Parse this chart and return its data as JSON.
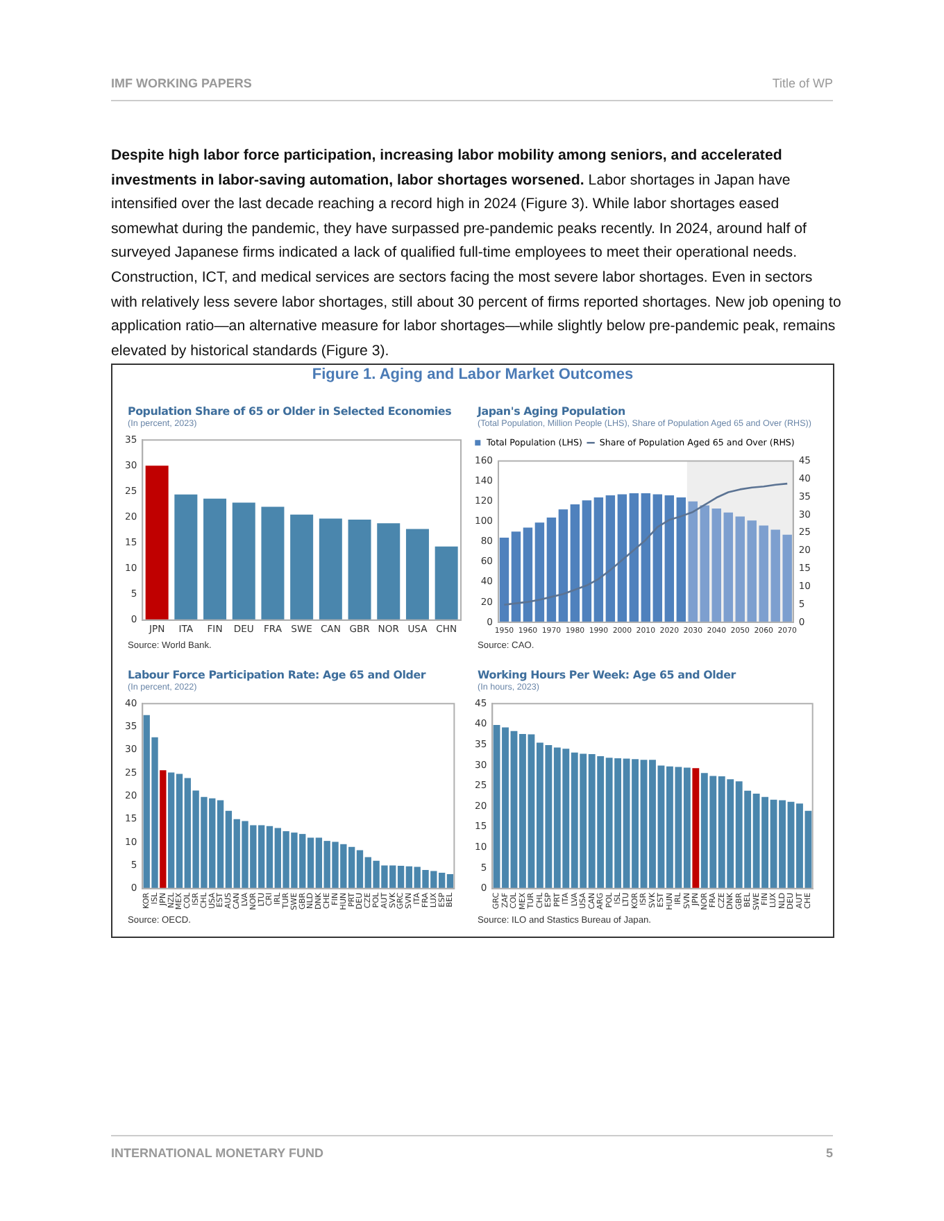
{
  "chart_data": [
    {
      "type": "bar",
      "title": "Population Share of 65 or Older in Selected Economies",
      "subtitle": "(In percent, 2023)",
      "categories": [
        "JPN",
        "ITA",
        "FIN",
        "DEU",
        "FRA",
        "SWE",
        "CAN",
        "GBR",
        "NOR",
        "USA",
        "CHN"
      ],
      "values": [
        30.0,
        24.4,
        23.6,
        22.8,
        22.0,
        20.5,
        19.7,
        19.5,
        18.8,
        17.7,
        14.3
      ],
      "colors": [
        "#c00000",
        "#4a86ad",
        "#4a86ad",
        "#4a86ad",
        "#4a86ad",
        "#4a86ad",
        "#4a86ad",
        "#4a86ad",
        "#4a86ad",
        "#4a86ad",
        "#4a86ad"
      ],
      "ylim": [
        0,
        35
      ],
      "yticks": [
        0,
        5,
        10,
        15,
        20,
        25,
        30,
        35
      ],
      "grid": false,
      "legend": false,
      "annotations": [
        "IMF WORKING PAPERS",
        "Title of WP",
        "Despite high labor force participation, increasing labor mobility among seniors, and accelerated investments in labor-saving automation, labor shortages worsened.",
        "Labor shortages in Japan have intensified over the last decade reaching a record high in 2024 (Figure 3). While labor shortages eased somewhat during the pandemic, they have surpassed pre-pandemic peaks recently. In 2024, around half of surveyed Japanese firms indicated a lack of qualified full-time employees to meet their operational needs. Construction, ICT, and medical services are sectors facing the most severe labor shortages. Even in sectors with relatively less severe labor shortages, still about 30 percent of firms reported shortages. New job opening to application ratio—an alternative measure for labor shortages—while slightly below pre-pandemic peak, remains elevated by historical standards (Figure 3).",
        "Figure 1. Aging and Labor Market Outcomes",
        "Source: World Bank.",
        "INTERNATIONAL MONETARY FUND",
        "5"
      ]
    },
    {
      "type": "bar",
      "title": "Japan's Aging Population",
      "subtitle": "(Total Population, Million People (LHS), Share of Population Aged 65 and Over (RHS))",
      "categories": [
        "1950",
        null,
        "1960",
        null,
        "1970",
        null,
        "1980",
        null,
        "1990",
        null,
        "2000",
        null,
        "2010",
        null,
        "2020",
        null,
        "2030",
        null,
        "2040",
        null,
        "2050",
        null,
        "2060",
        null,
        "2070"
      ],
      "series": [
        {
          "name": "Total Population (LHS)",
          "type": "bar",
          "color": "#4f81bd",
          "colors": [
            "#4f81bd",
            "#4f81bd",
            "#4f81bd",
            "#4f81bd",
            "#4f81bd",
            "#4f81bd",
            "#4f81bd",
            "#4f81bd",
            "#4f81bd",
            "#4f81bd",
            "#4f81bd",
            "#4f81bd",
            "#4f81bd",
            "#4f81bd",
            "#4f81bd",
            "#4f81bd",
            "#7d9fcf",
            "#7d9fcf",
            "#7d9fcf",
            "#7d9fcf",
            "#7d9fcf",
            "#7d9fcf",
            "#7d9fcf",
            "#7d9fcf",
            "#7d9fcf"
          ],
          "values": [
            84,
            90,
            94,
            99,
            104,
            112,
            117,
            121,
            124,
            126,
            127,
            128,
            128,
            127,
            126,
            124,
            120,
            116,
            113,
            109,
            105,
            101,
            96,
            92,
            87
          ]
        },
        {
          "name": "Share of Population Aged 65 and Over (RHS)",
          "type": "line",
          "axis": "y2",
          "color": "#5b7393",
          "values": [
            4.9,
            5.3,
            5.7,
            6.3,
            7.1,
            7.9,
            9.1,
            10.3,
            12.1,
            14.6,
            17.4,
            20.2,
            23.0,
            26.6,
            28.6,
            29.6,
            30.8,
            32.8,
            34.8,
            36.3,
            37.1,
            37.6,
            37.9,
            38.4,
            38.7
          ]
        }
      ],
      "ylim": [
        0,
        160
      ],
      "yticks": [
        0,
        20,
        40,
        60,
        80,
        100,
        120,
        140,
        160
      ],
      "y2lim": [
        0,
        45
      ],
      "y2ticks": [
        0,
        5,
        10,
        15,
        20,
        25,
        30,
        35,
        40,
        45
      ],
      "marker": "none",
      "grid": false,
      "legend": "top left",
      "bands": [
        {
          "axis": "x",
          "from": "2030",
          "to": "2070",
          "color": "#eeeeee"
        }
      ],
      "annotations": [
        "Source: CAO."
      ]
    },
    {
      "type": "bar",
      "title": "Labour Force Participation Rate: Age 65 and Older",
      "subtitle": "(In percent, 2022)",
      "categories": [
        "KOR",
        "ISL",
        "JPN",
        "NZL",
        "MEX",
        "COL",
        "ISR",
        "CHL",
        "USA",
        "EST",
        "AUS",
        "CAN",
        "LVA",
        "NOR",
        "LTU",
        "CRI",
        "IRL",
        "TUR",
        "SWE",
        "GBR",
        "NLD",
        "DNK",
        "CHE",
        "FIN",
        "HUN",
        "PRT",
        "DEU",
        "CZE",
        "POL",
        "AUT",
        "SVK",
        "GRC",
        "SVN",
        "ITA",
        "FRA",
        "LUX",
        "ESP",
        "BEL"
      ],
      "values": [
        37.5,
        32.7,
        25.6,
        25.1,
        24.8,
        23.9,
        21.2,
        19.8,
        19.5,
        19.1,
        16.8,
        15.0,
        14.6,
        13.7,
        13.7,
        13.5,
        13.1,
        12.4,
        12.1,
        11.8,
        11.0,
        11.0,
        10.3,
        10.1,
        9.6,
        9.0,
        8.3,
        6.8,
        6.0,
        5.0,
        5.0,
        4.9,
        4.8,
        4.7,
        4.0,
        3.8,
        3.4,
        3.1
      ],
      "colors": [
        "#4a86ad",
        "#4a86ad",
        "#c00000",
        "#4a86ad",
        "#4a86ad",
        "#4a86ad",
        "#4a86ad",
        "#4a86ad",
        "#4a86ad",
        "#4a86ad",
        "#4a86ad",
        "#4a86ad",
        "#4a86ad",
        "#4a86ad",
        "#4a86ad",
        "#4a86ad",
        "#4a86ad",
        "#4a86ad",
        "#4a86ad",
        "#4a86ad",
        "#4a86ad",
        "#4a86ad",
        "#4a86ad",
        "#4a86ad",
        "#4a86ad",
        "#4a86ad",
        "#4a86ad",
        "#4a86ad",
        "#4a86ad",
        "#4a86ad",
        "#4a86ad",
        "#4a86ad",
        "#4a86ad",
        "#4a86ad",
        "#4a86ad",
        "#4a86ad",
        "#4a86ad",
        "#4a86ad"
      ],
      "ylim": [
        0,
        40
      ],
      "yticks": [
        0,
        5,
        10,
        15,
        20,
        25,
        30,
        35,
        40
      ],
      "grid": false,
      "legend": false,
      "annotations": [
        "Source: OECD."
      ]
    },
    {
      "type": "bar",
      "title": "Working Hours Per Week: Age 65 and Older",
      "subtitle": "(In hours, 2023)",
      "categories": [
        "GRC",
        "ZAF",
        "COL",
        "MEX",
        "TUR",
        "CHL",
        "ESP",
        "PRT",
        "ITA",
        "LVA",
        "USA",
        "CAN",
        "ARG",
        "POL",
        "ISL",
        "LTU",
        "KOR",
        "ISR",
        "SVK",
        "EST",
        "HUN",
        "IRL",
        "SVN",
        "JPN",
        "NOR",
        "FRA",
        "CZE",
        "DNK",
        "GBR",
        "BEL",
        "SWE",
        "FIN",
        "LUX",
        "NLD",
        "DEU",
        "AUT",
        "CHE"
      ],
      "values": [
        39.8,
        39.2,
        38.3,
        37.6,
        37.5,
        35.5,
        34.9,
        34.3,
        34.0,
        33.1,
        32.8,
        32.7,
        32.2,
        31.8,
        31.7,
        31.6,
        31.5,
        31.3,
        31.3,
        29.9,
        29.7,
        29.6,
        29.4,
        29.3,
        28.1,
        27.4,
        27.3,
        26.6,
        26.1,
        23.8,
        23.1,
        22.3,
        21.6,
        21.5,
        21.1,
        20.7,
        18.9
      ],
      "colors": [
        "#4a86ad",
        "#4a86ad",
        "#4a86ad",
        "#4a86ad",
        "#4a86ad",
        "#4a86ad",
        "#4a86ad",
        "#4a86ad",
        "#4a86ad",
        "#4a86ad",
        "#4a86ad",
        "#4a86ad",
        "#4a86ad",
        "#4a86ad",
        "#4a86ad",
        "#4a86ad",
        "#4a86ad",
        "#4a86ad",
        "#4a86ad",
        "#4a86ad",
        "#4a86ad",
        "#4a86ad",
        "#4a86ad",
        "#c00000",
        "#4a86ad",
        "#4a86ad",
        "#4a86ad",
        "#4a86ad",
        "#4a86ad",
        "#4a86ad",
        "#4a86ad",
        "#4a86ad",
        "#4a86ad",
        "#4a86ad",
        "#4a86ad",
        "#4a86ad",
        "#4a86ad"
      ],
      "ylim": [
        0,
        45
      ],
      "yticks": [
        0,
        5,
        10,
        15,
        20,
        25,
        30,
        35,
        40,
        45
      ],
      "grid": false,
      "legend": false,
      "annotations": [
        "Source: ILO and Stastics Bureau of Japan."
      ]
    }
  ]
}
